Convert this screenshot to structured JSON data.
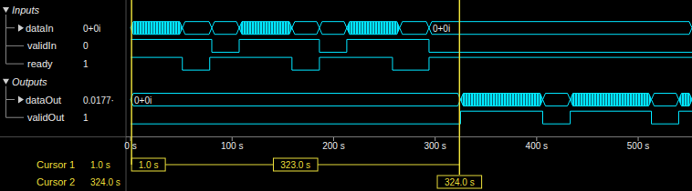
{
  "chart_data": {
    "type": "timing",
    "xlim": [
      -4.5,
      553
    ],
    "xticks": [
      {
        "value": 0,
        "label": "0 s"
      },
      {
        "value": 100,
        "label": "100 s"
      },
      {
        "value": 200,
        "label": "200 s"
      },
      {
        "value": 300,
        "label": "300 s"
      },
      {
        "value": 400,
        "label": "400 s"
      },
      {
        "value": 500,
        "label": "500 s"
      }
    ],
    "grid": false,
    "groups": [
      {
        "name": "Inputs",
        "signals": [
          {
            "name": "dataIn",
            "type": "bus",
            "color": "#00e5ff",
            "current": "0+0i",
            "segments": [
              {
                "start": 0,
                "end": 51,
                "dense": true
              },
              {
                "start": 51,
                "end": 80,
                "dense": false
              },
              {
                "start": 80,
                "end": 107,
                "dense": false
              },
              {
                "start": 107,
                "end": 159,
                "dense": true
              },
              {
                "start": 159,
                "end": 186,
                "dense": false
              },
              {
                "start": 186,
                "end": 213,
                "dense": false
              },
              {
                "start": 213,
                "end": 265,
                "dense": true
              },
              {
                "start": 265,
                "end": 294,
                "dense": false
              },
              {
                "start": 294,
                "end": 553,
                "dense": false,
                "label": "0+0i"
              }
            ]
          },
          {
            "name": "validIn",
            "type": "bit",
            "color": "#00e5ff",
            "current": "0",
            "segments": [
              {
                "start": 0,
                "end": 80,
                "level": 1
              },
              {
                "start": 80,
                "end": 107,
                "level": 0
              },
              {
                "start": 107,
                "end": 186,
                "level": 1
              },
              {
                "start": 186,
                "end": 213,
                "level": 0
              },
              {
                "start": 213,
                "end": 294,
                "level": 1
              },
              {
                "start": 294,
                "end": 553,
                "level": 0
              }
            ]
          },
          {
            "name": "ready",
            "type": "bit",
            "color": "#00e5ff",
            "current": "1",
            "segments": [
              {
                "start": 0,
                "end": 51,
                "level": 1
              },
              {
                "start": 51,
                "end": 78,
                "level": 0
              },
              {
                "start": 78,
                "end": 159,
                "level": 1
              },
              {
                "start": 159,
                "end": 186,
                "level": 0
              },
              {
                "start": 186,
                "end": 258,
                "level": 1
              },
              {
                "start": 258,
                "end": 294,
                "level": 0
              },
              {
                "start": 294,
                "end": 553,
                "level": 1
              }
            ]
          }
        ]
      },
      {
        "name": "Outputs",
        "signals": [
          {
            "name": "dataOut",
            "type": "bus",
            "color": "#00e5ff",
            "current": "0.0177·",
            "segments": [
              {
                "start": 0,
                "end": 325,
                "dense": false,
                "label": "0+0i"
              },
              {
                "start": 325,
                "end": 406,
                "dense": true
              },
              {
                "start": 406,
                "end": 433,
                "dense": false
              },
              {
                "start": 433,
                "end": 513,
                "dense": true
              },
              {
                "start": 513,
                "end": 540,
                "dense": false
              },
              {
                "start": 540,
                "end": 553,
                "dense": true
              }
            ]
          },
          {
            "name": "validOut",
            "type": "bit",
            "color": "#00e5ff",
            "current": "1",
            "segments": [
              {
                "start": 0,
                "end": 325,
                "level": 0
              },
              {
                "start": 325,
                "end": 406,
                "level": 1
              },
              {
                "start": 406,
                "end": 433,
                "level": 0
              },
              {
                "start": 433,
                "end": 513,
                "level": 1
              },
              {
                "start": 513,
                "end": 540,
                "level": 0
              },
              {
                "start": 540,
                "end": 553,
                "level": 1
              }
            ]
          }
        ]
      }
    ],
    "cursors": [
      {
        "name": "Cursor 1",
        "value": 1.0,
        "label": "1.0 s"
      },
      {
        "name": "Cursor 2",
        "value": 324.0,
        "label": "324.0 s"
      }
    ],
    "cursor_delta": {
      "value": 323.0,
      "label": "323.0 s"
    }
  }
}
